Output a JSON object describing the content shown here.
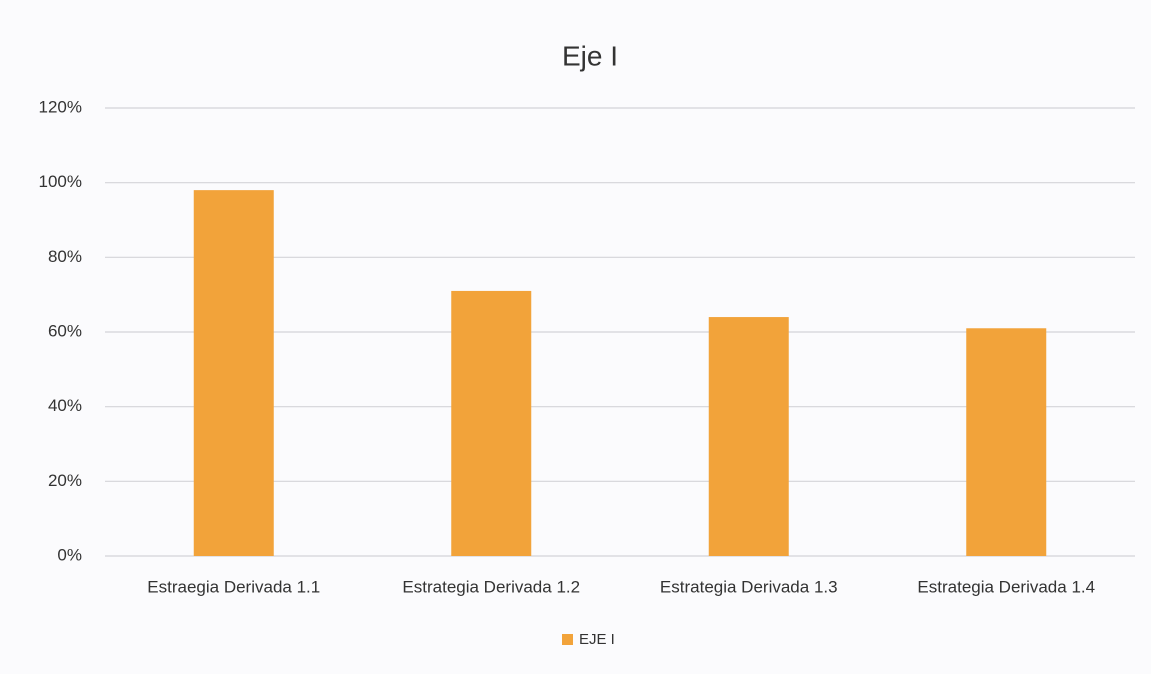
{
  "chart_data": {
    "type": "bar",
    "title": "Eje I",
    "categories": [
      "Estraegia Derivada 1.1",
      "Estrategia Derivada 1.2",
      "Estrategia Derivada 1.3",
      "Estrategia Derivada 1.4"
    ],
    "series": [
      {
        "name": "EJE I",
        "color": "#f2a33a",
        "values": [
          98,
          71,
          64,
          61
        ]
      }
    ],
    "ylim": [
      0,
      120
    ],
    "yticks": [
      {
        "value": 0,
        "label": "0%"
      },
      {
        "value": 20,
        "label": "20%"
      },
      {
        "value": 40,
        "label": "40%"
      },
      {
        "value": 60,
        "label": "60%"
      },
      {
        "value": 80,
        "label": "80%"
      },
      {
        "value": 100,
        "label": "100%"
      },
      {
        "value": 120,
        "label": "120%"
      }
    ],
    "grid": true,
    "legend": "bottom"
  }
}
